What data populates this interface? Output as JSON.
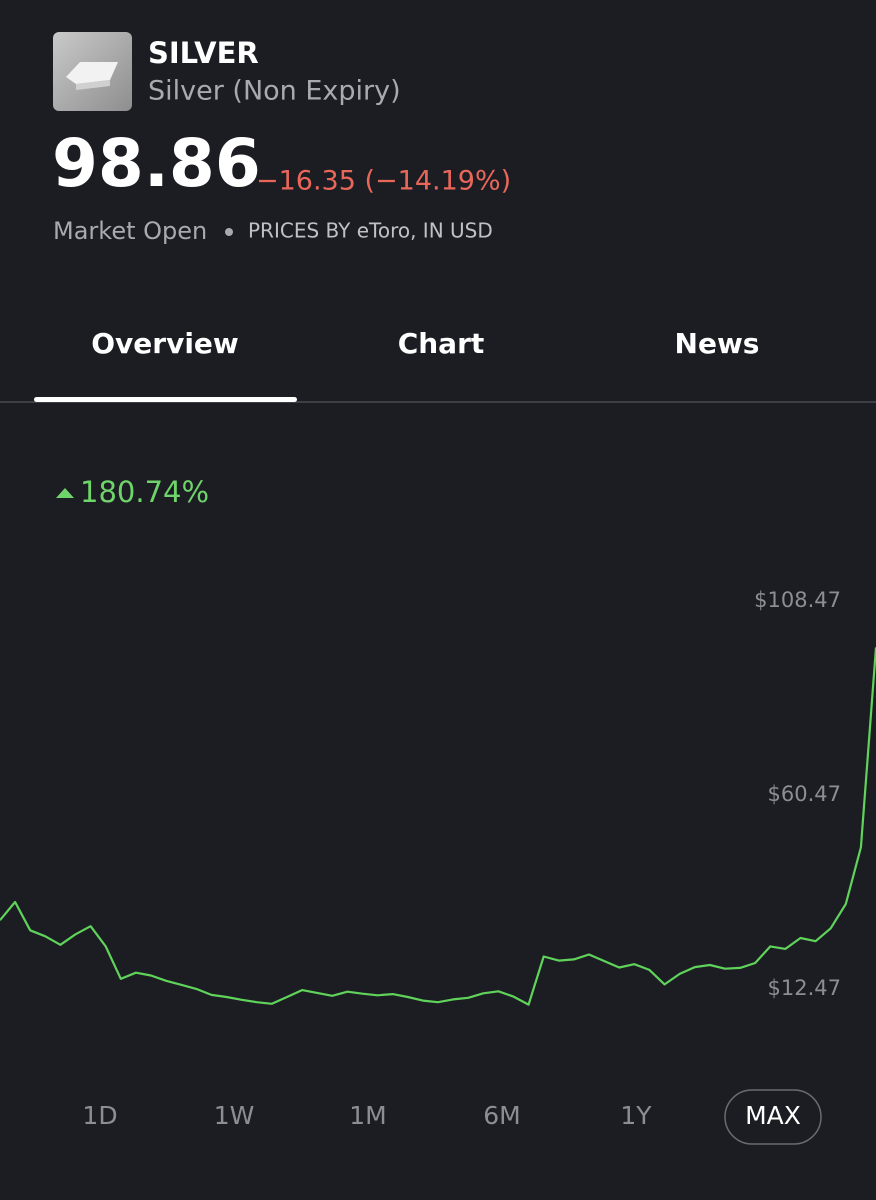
{
  "header": {
    "symbol": "SILVER",
    "name": "Silver (Non Expiry)",
    "price": "98.86",
    "change": "−16.35 (−14.19%)",
    "market_status": "Market Open",
    "source": "PRICES BY eToro, IN USD"
  },
  "tabs": [
    "Overview",
    "Chart",
    "News"
  ],
  "chart_data": {
    "type": "line",
    "annotation": "180.74%",
    "color": "#5fd35a",
    "values": [
      29.5,
      34,
      27,
      25.5,
      23.4,
      26,
      28,
      23,
      15,
      16.5,
      15.8,
      14.5,
      13.5,
      12.5,
      11,
      10.5,
      9.8,
      9.2,
      8.8,
      10.5,
      12.2,
      11.5,
      10.8,
      11.8,
      11.3,
      10.9,
      11.2,
      10.5,
      9.6,
      9.2,
      9.9,
      10.3,
      11.4,
      11.9,
      10.6,
      8.6,
      20.5,
      19.5,
      19.8,
      21,
      19.4,
      17.8,
      18.6,
      17.2,
      13.6,
      16.2,
      17.9,
      18.4,
      17.5,
      17.7,
      18.9,
      23,
      22.4,
      25.1,
      24.3,
      27.5,
      33.5,
      47.5,
      97
    ],
    "ylim": [
      0,
      120
    ],
    "yticks": [
      {
        "value": 12.47,
        "label": "$12.47"
      },
      {
        "value": 60.47,
        "label": "$60.47"
      },
      {
        "value": 108.47,
        "label": "$108.47"
      }
    ],
    "grid": false
  },
  "ranges": [
    "1D",
    "1W",
    "1M",
    "6M",
    "1Y",
    "MAX"
  ]
}
